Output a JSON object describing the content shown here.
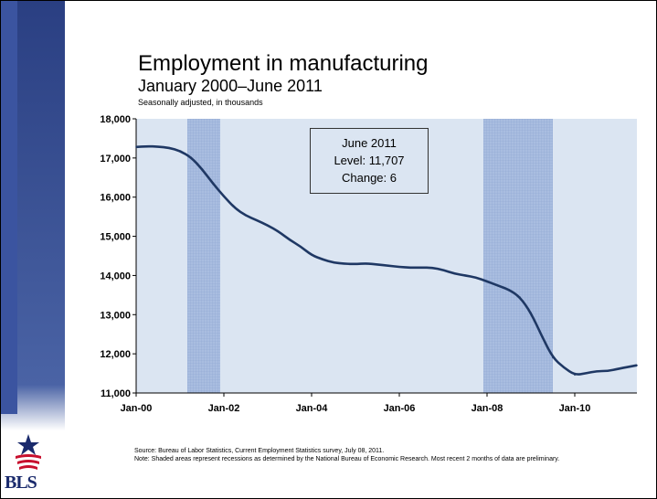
{
  "chart_data": {
    "type": "line",
    "title": "Employment in manufacturing",
    "subtitle": "January 2000–June 2011",
    "units": "Seasonally adjusted, in thousands",
    "ylim": [
      11000,
      18000
    ],
    "y_ticks": [
      11000,
      12000,
      13000,
      14000,
      15000,
      16000,
      17000,
      18000
    ],
    "y_tick_labels": [
      "11,000",
      "12,000",
      "13,000",
      "14,000",
      "15,000",
      "16,000",
      "17,000",
      "18,000"
    ],
    "x_ticks": [
      {
        "label": "Jan-00",
        "month_index": 0
      },
      {
        "label": "Jan-02",
        "month_index": 24
      },
      {
        "label": "Jan-04",
        "month_index": 48
      },
      {
        "label": "Jan-06",
        "month_index": 72
      },
      {
        "label": "Jan-08",
        "month_index": 96
      },
      {
        "label": "Jan-10",
        "month_index": 120
      }
    ],
    "recessions": [
      {
        "start": "Mar-01",
        "end": "Nov-01"
      },
      {
        "start": "Dec-07",
        "end": "Jun-09"
      }
    ],
    "grid": false,
    "series": [
      {
        "color": "#1f3864",
        "points": [
          [
            "Jan-00",
            17280
          ],
          [
            "Apr-00",
            17300
          ],
          [
            "Jul-00",
            17290
          ],
          [
            "Oct-00",
            17260
          ],
          [
            "Jan-01",
            17180
          ],
          [
            "Apr-01",
            17020
          ],
          [
            "Jul-01",
            16720
          ],
          [
            "Oct-01",
            16350
          ],
          [
            "Jan-02",
            16020
          ],
          [
            "Apr-02",
            15720
          ],
          [
            "Jul-02",
            15530
          ],
          [
            "Oct-02",
            15410
          ],
          [
            "Jan-03",
            15280
          ],
          [
            "Apr-03",
            15120
          ],
          [
            "Jul-03",
            14910
          ],
          [
            "Oct-03",
            14740
          ],
          [
            "Jan-04",
            14520
          ],
          [
            "Apr-04",
            14410
          ],
          [
            "Jul-04",
            14330
          ],
          [
            "Oct-04",
            14300
          ],
          [
            "Jan-05",
            14290
          ],
          [
            "Apr-05",
            14310
          ],
          [
            "Jul-05",
            14280
          ],
          [
            "Oct-05",
            14250
          ],
          [
            "Jan-06",
            14220
          ],
          [
            "Apr-06",
            14200
          ],
          [
            "Jul-06",
            14200
          ],
          [
            "Oct-06",
            14200
          ],
          [
            "Jan-07",
            14140
          ],
          [
            "Apr-07",
            14050
          ],
          [
            "Jul-07",
            14000
          ],
          [
            "Oct-07",
            13950
          ],
          [
            "Jan-08",
            13850
          ],
          [
            "Apr-08",
            13740
          ],
          [
            "Jul-08",
            13640
          ],
          [
            "Oct-08",
            13450
          ],
          [
            "Jan-09",
            13050
          ],
          [
            "Apr-09",
            12450
          ],
          [
            "Jul-09",
            11900
          ],
          [
            "Oct-09",
            11650
          ],
          [
            "Jan-10",
            11460
          ],
          [
            "Apr-10",
            11500
          ],
          [
            "Jul-10",
            11560
          ],
          [
            "Oct-10",
            11560
          ],
          [
            "Jan-11",
            11620
          ],
          [
            "Jun-11",
            11707
          ]
        ]
      }
    ],
    "annotation": {
      "lines": [
        "June 2011",
        "Level: 11,707",
        "Change: 6"
      ]
    }
  },
  "source_note": {
    "source": "Source: Bureau of Labor Statistics, Current Employment Statistics survey, July 08, 2011.",
    "note": "Note: Shaded areas represent recessions as determined by the National Bureau of Economic Research. Most recent 2 months of data are preliminary."
  },
  "logo": {
    "text": "BLS",
    "colors": {
      "star": "#1a2a6c",
      "stripes": "#c8102e"
    }
  },
  "colors": {
    "plot_background": "#dbe5f2",
    "recession_fill": "#a9bde0",
    "sidebar": "#3b54a0"
  }
}
